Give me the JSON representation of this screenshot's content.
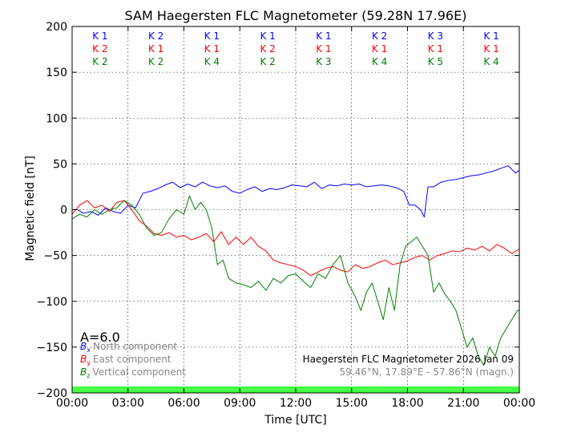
{
  "chart_data": {
    "type": "line",
    "title": "SAM Haegersten FLC Magnetometer (59.28N 17.96E)",
    "xlabel": "Time [UTC]",
    "ylabel": "Magnetic field [nT]",
    "xlim": [
      0,
      24
    ],
    "ylim": [
      -200,
      200
    ],
    "x_ticks": [
      0,
      3,
      6,
      9,
      12,
      15,
      18,
      21,
      24
    ],
    "x_tick_labels": [
      "00:00",
      "03:00",
      "06:00",
      "09:00",
      "12:00",
      "15:00",
      "18:00",
      "21:00",
      "00:00"
    ],
    "y_ticks": [
      -200,
      -150,
      -100,
      -50,
      0,
      50,
      100,
      150,
      200
    ],
    "y_tick_labels": [
      "−200",
      "−150",
      "−100",
      "−50",
      "0",
      "50",
      "100",
      "150",
      "200"
    ],
    "grid": true,
    "colors": {
      "north": "#0000ff",
      "east": "#ff0000",
      "vertical": "#008000",
      "status_bar": "#44ff44"
    },
    "k_index": {
      "rows": [
        {
          "color": "#0000ff",
          "labels": [
            "K 1",
            "K 2",
            "K 1",
            "K 1",
            "K 1",
            "K 2",
            "K 3",
            "K 1"
          ]
        },
        {
          "color": "#ff0000",
          "labels": [
            "K 2",
            "K 1",
            "K 1",
            "K 2",
            "K 1",
            "K 1",
            "K 1",
            "K 1"
          ]
        },
        {
          "color": "#008000",
          "labels": [
            "K 2",
            "K 2",
            "K 4",
            "K 2",
            "K 3",
            "K 4",
            "K 5",
            "K 4"
          ]
        }
      ]
    },
    "a_index": "A=6.0",
    "legend": [
      {
        "symbol": "B",
        "sub": "x",
        "label": "North component",
        "color": "#0000ff"
      },
      {
        "symbol": "B",
        "sub": "y",
        "label": "East component",
        "color": "#ff0000"
      },
      {
        "symbol": "B",
        "sub": "z",
        "label": "Vertical component",
        "color": "#008000"
      }
    ],
    "annotations": {
      "station": "Haegersten FLC Magnetometer 2026 Jan 09",
      "coords": "59.46°N, 17.89°E - 57.86°N (magn.)"
    },
    "series": [
      {
        "name": "North component",
        "color": "#0000ff",
        "x": [
          0,
          0.3,
          0.6,
          1.0,
          1.4,
          1.8,
          2.2,
          2.6,
          3.0,
          3.4,
          3.8,
          4.2,
          4.6,
          5.0,
          5.4,
          5.8,
          6.2,
          6.6,
          7.0,
          7.4,
          7.8,
          8.2,
          8.6,
          9.0,
          9.4,
          9.8,
          10.2,
          10.6,
          11.0,
          11.4,
          11.8,
          12.2,
          12.6,
          13.0,
          13.4,
          13.8,
          14.2,
          14.6,
          15.0,
          15.4,
          15.8,
          16.2,
          16.6,
          17.0,
          17.4,
          17.8,
          18.1,
          18.4,
          18.7,
          18.9,
          19.1,
          19.4,
          19.8,
          20.2,
          20.6,
          21.0,
          21.4,
          21.8,
          22.2,
          22.6,
          23.0,
          23.4,
          23.8,
          24.0
        ],
        "y": [
          0,
          0,
          -4,
          -2,
          -6,
          2,
          -2,
          -4,
          5,
          2,
          18,
          20,
          23,
          27,
          30,
          24,
          28,
          25,
          30,
          26,
          24,
          26,
          20,
          18,
          22,
          25,
          20,
          23,
          22,
          24,
          27,
          26,
          25,
          30,
          23,
          27,
          26,
          28,
          27,
          28,
          25,
          26,
          27,
          26,
          24,
          20,
          5,
          5,
          0,
          -8,
          25,
          25,
          30,
          32,
          33,
          35,
          37,
          38,
          40,
          42,
          45,
          48,
          40,
          43
        ]
      },
      {
        "name": "East component",
        "color": "#ff0000",
        "x": [
          0,
          0.4,
          0.8,
          1.2,
          1.6,
          2.0,
          2.4,
          2.8,
          3.2,
          3.6,
          4.0,
          4.4,
          4.8,
          5.2,
          5.6,
          6.0,
          6.4,
          6.8,
          7.2,
          7.6,
          8.0,
          8.4,
          8.8,
          9.2,
          9.6,
          10.0,
          10.4,
          10.8,
          11.2,
          11.6,
          12.0,
          12.4,
          12.8,
          13.2,
          13.6,
          14.0,
          14.4,
          14.8,
          15.2,
          15.6,
          16.0,
          16.4,
          16.8,
          17.2,
          17.6,
          18.0,
          18.4,
          18.8,
          19.2,
          19.6,
          20.0,
          20.4,
          20.8,
          21.2,
          21.6,
          22.0,
          22.4,
          22.8,
          23.2,
          23.6,
          24.0
        ],
        "y": [
          -5,
          5,
          10,
          2,
          5,
          -2,
          8,
          10,
          0,
          -12,
          -18,
          -26,
          -28,
          -25,
          -30,
          -28,
          -33,
          -30,
          -26,
          -35,
          -24,
          -38,
          -30,
          -38,
          -30,
          -40,
          -45,
          -55,
          -58,
          -60,
          -62,
          -66,
          -72,
          -68,
          -64,
          -62,
          -66,
          -68,
          -60,
          -64,
          -62,
          -58,
          -55,
          -60,
          -58,
          -56,
          -52,
          -50,
          -55,
          -50,
          -48,
          -45,
          -46,
          -42,
          -44,
          -40,
          -45,
          -38,
          -42,
          -48,
          -43
        ]
      },
      {
        "name": "Vertical component",
        "color": "#008000",
        "x": [
          0,
          0.4,
          0.8,
          1.2,
          1.6,
          2.0,
          2.4,
          2.8,
          3.2,
          3.6,
          4.0,
          4.4,
          4.8,
          5.2,
          5.6,
          6.0,
          6.3,
          6.6,
          6.9,
          7.2,
          7.5,
          7.8,
          8.1,
          8.4,
          8.8,
          9.2,
          9.6,
          10.0,
          10.4,
          10.8,
          11.2,
          11.6,
          12.0,
          12.4,
          12.8,
          13.2,
          13.6,
          14.0,
          14.4,
          14.8,
          15.2,
          15.5,
          15.8,
          16.1,
          16.4,
          16.7,
          17.0,
          17.3,
          17.6,
          17.9,
          18.2,
          18.5,
          18.8,
          19.1,
          19.4,
          19.7,
          20.0,
          20.3,
          20.6,
          20.9,
          21.2,
          21.5,
          21.8,
          22.1,
          22.4,
          22.7,
          23.0,
          23.3,
          23.6,
          23.9,
          24.0
        ],
        "y": [
          -10,
          -5,
          -8,
          0,
          -5,
          0,
          2,
          10,
          5,
          -5,
          -20,
          -28,
          -25,
          -10,
          0,
          -5,
          15,
          0,
          8,
          0,
          -20,
          -60,
          -55,
          -75,
          -80,
          -82,
          -85,
          -78,
          -88,
          -75,
          -80,
          -72,
          -70,
          -78,
          -85,
          -70,
          -75,
          -60,
          -50,
          -80,
          -95,
          -110,
          -90,
          -80,
          -100,
          -120,
          -85,
          -110,
          -60,
          -40,
          -35,
          -30,
          -40,
          -50,
          -90,
          -80,
          -92,
          -100,
          -110,
          -130,
          -150,
          -140,
          -160,
          -170,
          -150,
          -160,
          -140,
          -130,
          -120,
          -110,
          -110
        ]
      }
    ]
  }
}
